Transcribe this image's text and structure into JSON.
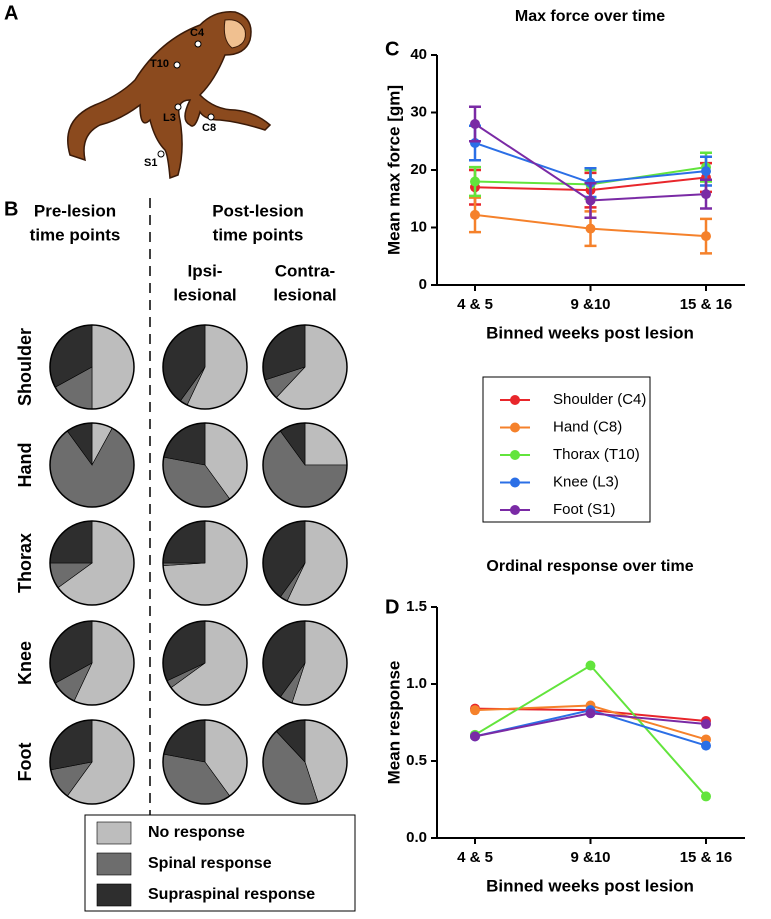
{
  "panel_labels": [
    "A",
    "B",
    "C",
    "D"
  ],
  "monkey": {
    "labels": [
      "C4",
      "T10",
      "L3",
      "C8",
      "S1"
    ]
  },
  "chart_data": [
    {
      "type": "pie",
      "column_headers": [
        [
          "Pre-lesion",
          "time points"
        ],
        [
          "Post-lesion",
          "time points"
        ]
      ],
      "columns": [
        [
          "Ipsi-",
          "lesional"
        ],
        [
          "Contra-",
          "lesional"
        ]
      ],
      "rows": [
        "Shoulder",
        "Hand",
        "Thorax",
        "Knee",
        "Foot"
      ],
      "labels": [
        "No response",
        "Spinal response",
        "Supraspinal response"
      ],
      "colors": [
        "#bdbdbd",
        "#6d6d6d",
        "#2e2e2e"
      ],
      "pies": [
        [
          [
            50,
            17,
            33
          ],
          [
            57,
            3,
            40
          ],
          [
            62,
            8,
            30
          ]
        ],
        [
          [
            8,
            82,
            10
          ],
          [
            40,
            38,
            22
          ],
          [
            25,
            65,
            10
          ]
        ],
        [
          [
            65,
            10,
            25
          ],
          [
            74,
            1,
            25
          ],
          [
            57,
            3,
            40
          ]
        ],
        [
          [
            57,
            10,
            33
          ],
          [
            65,
            3,
            32
          ],
          [
            55,
            5,
            40
          ]
        ],
        [
          [
            60,
            12,
            28
          ],
          [
            40,
            38,
            22
          ],
          [
            45,
            43,
            12
          ]
        ]
      ]
    },
    {
      "type": "line",
      "title": "Max force over time",
      "x_label": "Binned weeks post lesion",
      "y_label": "Mean max force [gm]",
      "categories": [
        "4 & 5",
        "9 &10",
        "15 & 16"
      ],
      "ylim": [
        0,
        40
      ],
      "yticks": [
        0,
        10,
        20,
        30,
        40
      ],
      "series": [
        {
          "name": "Shoulder (C4)",
          "color": "#e8262b",
          "values": [
            17,
            16.5,
            18.7
          ],
          "errors": [
            3,
            3,
            2.5
          ]
        },
        {
          "name": "Hand (C8)",
          "color": "#f5812b",
          "values": [
            12.2,
            9.8,
            8.5
          ],
          "errors": [
            3,
            3,
            3
          ]
        },
        {
          "name": "Thorax (T10)",
          "color": "#62e43c",
          "values": [
            18,
            17.5,
            20.5
          ],
          "errors": [
            2.5,
            2.5,
            2.5
          ]
        },
        {
          "name": "Knee (L3)",
          "color": "#2b6fe6",
          "values": [
            24.7,
            17.8,
            19.8
          ],
          "errors": [
            3,
            2.5,
            2.5
          ]
        },
        {
          "name": "Foot (S1)",
          "color": "#7a2aa5",
          "values": [
            28,
            14.7,
            15.8
          ],
          "errors": [
            3,
            3,
            2.5
          ]
        }
      ]
    },
    {
      "type": "line",
      "title": "Ordinal response over time",
      "x_label": "Binned weeks post lesion",
      "y_label": "Mean response",
      "categories": [
        "4 & 5",
        "9 &10",
        "15 & 16"
      ],
      "ylim": [
        0,
        1.5
      ],
      "yticks": [
        {
          "value": 0,
          "label": "0.0"
        },
        {
          "value": 0.5,
          "label": "0.5"
        },
        {
          "value": 1,
          "label": "1.0"
        },
        {
          "value": 1.5,
          "label": "1.5"
        }
      ],
      "series": [
        {
          "color": "#e8262b",
          "values": [
            0.84,
            0.83,
            0.76
          ]
        },
        {
          "color": "#f5812b",
          "values": [
            0.83,
            0.86,
            0.64
          ]
        },
        {
          "color": "#62e43c",
          "values": [
            0.67,
            1.12,
            0.27
          ]
        },
        {
          "color": "#2b6fe6",
          "values": [
            0.66,
            0.83,
            0.6
          ]
        },
        {
          "color": "#7a2aa5",
          "values": [
            0.66,
            0.81,
            0.74
          ]
        }
      ]
    }
  ]
}
